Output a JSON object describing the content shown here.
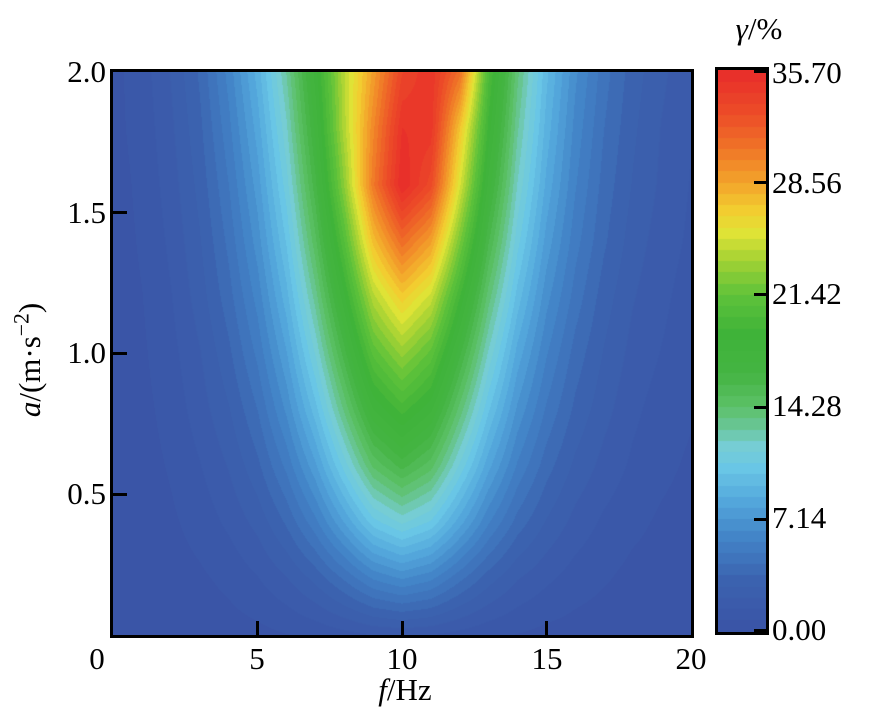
{
  "figure": {
    "background": "#ffffff",
    "text_color": "#000000",
    "frame_color": "#000000"
  },
  "axes": {
    "xlabel": {
      "var": "f",
      "rest": "/Hz"
    },
    "ylabel": {
      "var": "a",
      "mid": "/(m·s",
      "sup": "−2",
      "end": ")"
    },
    "colorbar_title": {
      "var": "γ",
      "rest": "/%"
    }
  },
  "chart_data": {
    "type": "heatmap",
    "subtype": "filled-contour",
    "title": "",
    "xlabel": "f/Hz",
    "ylabel": "a/(m·s⁻²)",
    "colorbar_label": "γ/%",
    "x_range": [
      0,
      20
    ],
    "y_range": [
      0,
      2
    ],
    "z_range": [
      0,
      35.7
    ],
    "levels": 50,
    "grid_on": false,
    "legend": "colorbar-right",
    "xtick_values": [
      0,
      5,
      10,
      15,
      20
    ],
    "xtick_labels": [
      "0",
      "5",
      "10",
      "15",
      "20"
    ],
    "ytick_values": [
      0.5,
      1.0,
      1.5,
      2.0
    ],
    "ytick_labels": [
      "0.5",
      "1.0",
      "1.5",
      "2.0"
    ],
    "ctick_values": [
      0,
      7.14,
      14.28,
      21.42,
      28.56,
      35.7
    ],
    "ctick_labels": [
      "0.00",
      "7.14",
      "14.28",
      "21.42",
      "28.56",
      "35.70"
    ],
    "colormap": [
      [
        0.0,
        "#3a53a6"
      ],
      [
        0.09,
        "#3b62af"
      ],
      [
        0.17,
        "#4385c8"
      ],
      [
        0.23,
        "#53a6db"
      ],
      [
        0.29,
        "#69c6e6"
      ],
      [
        0.33,
        "#76cdd4"
      ],
      [
        0.37,
        "#67c590"
      ],
      [
        0.4,
        "#5cc167"
      ],
      [
        0.46,
        "#44b442"
      ],
      [
        0.53,
        "#3fb339"
      ],
      [
        0.6,
        "#5fc23a"
      ],
      [
        0.66,
        "#a2d234"
      ],
      [
        0.71,
        "#dfe336"
      ],
      [
        0.75,
        "#f2cd30"
      ],
      [
        0.8,
        "#f3a42b"
      ],
      [
        0.86,
        "#f07527"
      ],
      [
        0.92,
        "#ec4d28"
      ],
      [
        1.0,
        "#e82c2a"
      ]
    ],
    "grid": {
      "f": [
        0,
        1,
        2,
        3,
        4,
        5,
        6,
        7,
        8,
        9,
        10,
        11,
        12,
        13,
        14,
        15,
        16,
        17,
        18,
        19,
        20
      ],
      "a": [
        0,
        0.2,
        0.4,
        0.6,
        0.8,
        1.0,
        1.2,
        1.4,
        1.6,
        1.8,
        2.0
      ],
      "values": [
        [
          0.1,
          0.1,
          0.2,
          0.3,
          0.4,
          0.5,
          0.7,
          0.9,
          1.2,
          1.5,
          1.6,
          1.5,
          1.2,
          0.9,
          0.7,
          0.5,
          0.4,
          0.3,
          0.2,
          0.1,
          0.1
        ],
        [
          0.1,
          0.2,
          0.4,
          0.6,
          0.9,
          1.4,
          2.1,
          3.1,
          4.4,
          5.8,
          6.5,
          5.9,
          4.5,
          3.2,
          2.2,
          1.6,
          1.1,
          0.8,
          0.5,
          0.4,
          0.3
        ],
        [
          0.2,
          0.3,
          0.6,
          1.0,
          1.6,
          2.4,
          3.7,
          5.5,
          7.9,
          10.4,
          11.6,
          10.6,
          8.2,
          5.8,
          4.0,
          2.8,
          1.9,
          1.3,
          0.9,
          0.6,
          0.4
        ],
        [
          0.2,
          0.4,
          0.8,
          1.4,
          2.2,
          3.4,
          5.2,
          7.7,
          11.0,
          14.4,
          16.0,
          14.6,
          11.3,
          8.1,
          5.6,
          3.9,
          2.7,
          1.9,
          1.3,
          0.9,
          0.6
        ],
        [
          0.3,
          0.5,
          1.0,
          1.8,
          2.8,
          4.3,
          6.6,
          9.7,
          13.7,
          17.8,
          19.6,
          18.0,
          14.0,
          10.1,
          7.0,
          4.9,
          3.4,
          2.4,
          1.6,
          1.1,
          0.8
        ],
        [
          0.3,
          0.6,
          1.2,
          2.1,
          3.4,
          5.2,
          7.8,
          11.5,
          16.1,
          20.9,
          23.1,
          21.2,
          16.6,
          12.0,
          8.3,
          5.8,
          4.0,
          2.8,
          1.9,
          1.4,
          1.0
        ],
        [
          0.4,
          0.7,
          1.4,
          2.5,
          4.0,
          6.0,
          9.0,
          13.2,
          18.4,
          24.0,
          26.8,
          24.7,
          19.3,
          13.9,
          9.7,
          6.7,
          4.7,
          3.2,
          2.2,
          1.6,
          1.1
        ],
        [
          0.4,
          0.8,
          1.6,
          2.8,
          4.5,
          6.8,
          10.1,
          14.8,
          20.7,
          27.4,
          31.2,
          28.8,
          22.3,
          15.8,
          11.0,
          7.6,
          5.3,
          3.7,
          2.5,
          1.8,
          1.3
        ],
        [
          0.4,
          0.9,
          1.8,
          3.1,
          5.0,
          7.5,
          11.1,
          16.2,
          22.9,
          30.5,
          35.7,
          33.2,
          25.2,
          17.6,
          12.1,
          8.4,
          5.8,
          4.0,
          2.8,
          2.0,
          1.4
        ],
        [
          0.5,
          1.0,
          2.0,
          3.4,
          5.5,
          8.2,
          12.0,
          17.3,
          24.0,
          29.8,
          35.0,
          34.7,
          27.2,
          19.0,
          13.0,
          9.0,
          6.2,
          4.3,
          3.0,
          2.1,
          1.5
        ],
        [
          0.5,
          1.1,
          2.2,
          3.7,
          6.0,
          8.9,
          12.9,
          18.2,
          24.2,
          28.8,
          33.5,
          34.9,
          31.0,
          20.2,
          13.8,
          9.5,
          6.6,
          4.6,
          3.2,
          2.3,
          1.6
        ]
      ]
    }
  }
}
